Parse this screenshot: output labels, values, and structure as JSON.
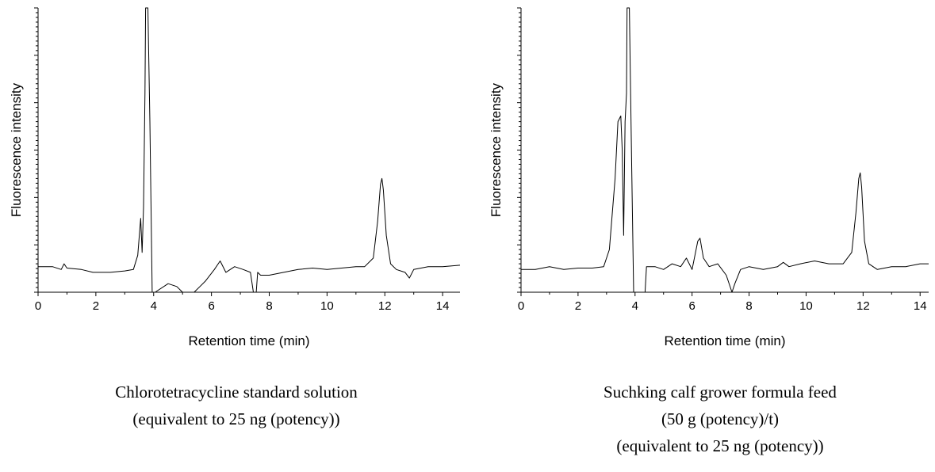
{
  "chart_data": [
    {
      "type": "line",
      "title": "",
      "xlabel": "Retention time (min)",
      "ylabel": "Fluorescence intensity",
      "xlim": [
        0,
        14.6
      ],
      "xticks": [
        "0",
        "2",
        "4",
        "6",
        "8",
        "10",
        "12",
        "14"
      ],
      "ylim": [
        0,
        100
      ],
      "grid": false,
      "caption": [
        "Chlorotetracycline standard solution",
        "(equivalent to 25 ng (potency))"
      ],
      "series": [
        {
          "x": [
            0,
            0.5,
            0.8,
            0.9,
            1.0,
            1.5,
            1.9,
            2.5,
            3.0,
            3.3,
            3.45,
            3.55,
            3.6,
            3.65,
            3.7,
            3.72,
            3.75,
            3.8,
            3.87,
            3.95,
            4.05,
            4.5,
            4.8,
            5.0,
            5.2,
            5.4,
            5.6,
            5.8,
            6.1,
            6.3,
            6.5,
            6.8,
            7.1,
            7.35,
            7.45,
            7.55,
            7.6,
            7.7,
            8.0,
            8.5,
            9.0,
            9.5,
            10.0,
            10.5,
            11.0,
            11.3,
            11.6,
            11.75,
            11.85,
            11.9,
            11.95,
            12.05,
            12.2,
            12.4,
            12.7,
            12.85,
            13.0,
            13.5,
            14.0,
            14.6
          ],
          "y": [
            9,
            9,
            8,
            10,
            8.5,
            8,
            7,
            7,
            7.5,
            8,
            13,
            26,
            14,
            30,
            70,
            100,
            100,
            100,
            60,
            0,
            0,
            3,
            2,
            0,
            0,
            0,
            2,
            4,
            8,
            11,
            7,
            9,
            8,
            7,
            0,
            0,
            7,
            6,
            6,
            7,
            8,
            8.5,
            8,
            8.5,
            9,
            9,
            12,
            25,
            38,
            40,
            36,
            20,
            10,
            8,
            7,
            5,
            8,
            9,
            9,
            9.5
          ]
        }
      ]
    },
    {
      "type": "line",
      "title": "",
      "xlabel": "Retention time (min)",
      "ylabel": "Fluorescence intensity",
      "xlim": [
        0,
        14.3
      ],
      "xticks": [
        "0",
        "2",
        "4",
        "6",
        "8",
        "10",
        "12",
        "14"
      ],
      "ylim": [
        0,
        100
      ],
      "grid": false,
      "caption": [
        "Suchking calf grower formula feed",
        "(50 g (potency)/t)",
        "(equivalent to 25 ng (potency))"
      ],
      "series": [
        {
          "x": [
            0,
            0.5,
            1.0,
            1.5,
            2.0,
            2.5,
            2.9,
            3.1,
            3.3,
            3.4,
            3.5,
            3.55,
            3.6,
            3.65,
            3.7,
            3.72,
            3.75,
            3.8,
            3.88,
            3.95,
            4.0,
            4.35,
            4.4,
            4.7,
            5.0,
            5.3,
            5.6,
            5.8,
            6.0,
            6.2,
            6.28,
            6.4,
            6.6,
            6.9,
            7.2,
            7.4,
            7.5,
            7.7,
            8.0,
            8.5,
            9.0,
            9.2,
            9.4,
            9.8,
            10.3,
            10.8,
            11.3,
            11.6,
            11.75,
            11.85,
            11.9,
            11.95,
            12.05,
            12.2,
            12.5,
            13.0,
            13.5,
            14.0,
            14.3
          ],
          "y": [
            8,
            8,
            9,
            8,
            8.5,
            8.5,
            9,
            15,
            40,
            60,
            62,
            50,
            20,
            60,
            70,
            100,
            100,
            100,
            45,
            0,
            0,
            0,
            9,
            9,
            8,
            10,
            9,
            12,
            8,
            18,
            19,
            12,
            9,
            10,
            6,
            0,
            3,
            8,
            9,
            8,
            9,
            10.5,
            9,
            10,
            11,
            10,
            10,
            14,
            28,
            40,
            42,
            37,
            18,
            10,
            8,
            9,
            9,
            10,
            10
          ]
        }
      ]
    }
  ]
}
